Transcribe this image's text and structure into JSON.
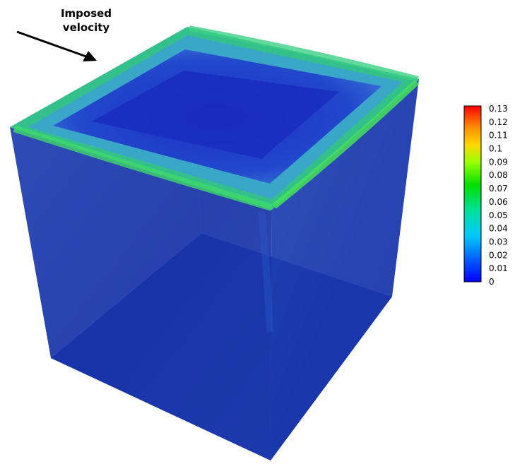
{
  "annotation": {
    "line1": "Imposed",
    "line2": "velocity"
  },
  "colorbar": {
    "tick_labels": [
      "0.13",
      "0.12",
      "0.11",
      "0.1",
      "0.09",
      "0.08",
      "0.07",
      "0.06",
      "0.05",
      "0.04",
      "0.03",
      "0.02",
      "0.01",
      "0"
    ],
    "min": 0,
    "max": 0.13,
    "colors": [
      "#ff0000",
      "#ff8c00",
      "#ffd700",
      "#9aff00",
      "#00e000",
      "#00e0a0",
      "#00c8ff",
      "#0060ff",
      "#0000ff"
    ]
  },
  "colors": {
    "top_face_low": "#1a33c8",
    "top_face_high": "#38d07a",
    "side_faces": "#1630a8"
  }
}
